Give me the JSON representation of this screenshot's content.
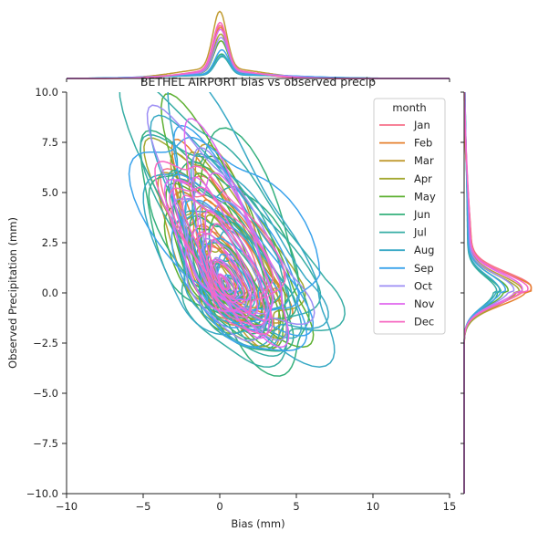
{
  "chart_data": {
    "type": "contour",
    "title": "BETHEL AIRPORT bias vs observed precip",
    "xlabel": "Bias (mm)",
    "ylabel": "Observed Precipitation (mm)",
    "xlim": [
      -10,
      15
    ],
    "ylim": [
      -10,
      10
    ],
    "xticks": [
      -10,
      -5,
      0,
      5,
      10,
      15
    ],
    "yticks": [
      -10.0,
      -7.5,
      -5.0,
      -2.5,
      0.0,
      2.5,
      5.0,
      7.5,
      10.0
    ],
    "xtick_labels": [
      "−10",
      "−5",
      "0",
      "5",
      "10",
      "15"
    ],
    "ytick_labels": [
      "−10.0",
      "−7.5",
      "−5.0",
      "−2.5",
      "0.0",
      "2.5",
      "5.0",
      "7.5",
      "10.0"
    ],
    "legend": {
      "title": "month",
      "placement": "top-right"
    },
    "series": [
      {
        "name": "Jan",
        "color": "#f77189",
        "center": [
          0.1,
          0.5
        ],
        "spread": [
          2.5,
          3.4
        ],
        "marginal_x_peak": 0.78,
        "marginal_y_peak": 0.95
      },
      {
        "name": "Feb",
        "color": "#e6812f",
        "center": [
          0.2,
          0.3
        ],
        "spread": [
          2.6,
          3.4
        ],
        "marginal_x_peak": 0.75,
        "marginal_y_peak": 0.98
      },
      {
        "name": "Mar",
        "color": "#c19b31",
        "center": [
          0.0,
          0.2
        ],
        "spread": [
          3.0,
          4.0
        ],
        "marginal_x_peak": 0.98,
        "marginal_y_peak": 0.82
      },
      {
        "name": "Apr",
        "color": "#a3a831",
        "center": [
          0.3,
          0.1
        ],
        "spread": [
          3.2,
          4.2
        ],
        "marginal_x_peak": 0.65,
        "marginal_y_peak": 0.78
      },
      {
        "name": "May",
        "color": "#5db031",
        "center": [
          0.4,
          0.2
        ],
        "spread": [
          3.6,
          4.6
        ],
        "marginal_x_peak": 0.55,
        "marginal_y_peak": 0.62
      },
      {
        "name": "Jun",
        "color": "#34b07c",
        "center": [
          0.6,
          0.0
        ],
        "spread": [
          4.2,
          5.2
        ],
        "marginal_x_peak": 0.36,
        "marginal_y_peak": 0.52
      },
      {
        "name": "Jul",
        "color": "#36ada4",
        "center": [
          0.8,
          0.1
        ],
        "spread": [
          4.6,
          5.6
        ],
        "marginal_x_peak": 0.32,
        "marginal_y_peak": 0.46
      },
      {
        "name": "Aug",
        "color": "#38a9c5",
        "center": [
          0.9,
          0.2
        ],
        "spread": [
          4.8,
          5.4
        ],
        "marginal_x_peak": 0.34,
        "marginal_y_peak": 0.5
      },
      {
        "name": "Sep",
        "color": "#3ba3ec",
        "center": [
          0.7,
          0.3
        ],
        "spread": [
          4.4,
          4.8
        ],
        "marginal_x_peak": 0.42,
        "marginal_y_peak": 0.58
      },
      {
        "name": "Oct",
        "color": "#9c8df4",
        "center": [
          0.4,
          0.3
        ],
        "spread": [
          3.4,
          4.4
        ],
        "marginal_x_peak": 0.6,
        "marginal_y_peak": 0.7
      },
      {
        "name": "Nov",
        "color": "#e167ee",
        "center": [
          0.2,
          0.4
        ],
        "spread": [
          2.8,
          4.2
        ],
        "marginal_x_peak": 0.72,
        "marginal_y_peak": 0.82
      },
      {
        "name": "Dec",
        "color": "#f668c2",
        "center": [
          0.1,
          0.4
        ],
        "spread": [
          2.6,
          3.8
        ],
        "marginal_x_peak": 0.82,
        "marginal_y_peak": 0.9
      }
    ]
  }
}
